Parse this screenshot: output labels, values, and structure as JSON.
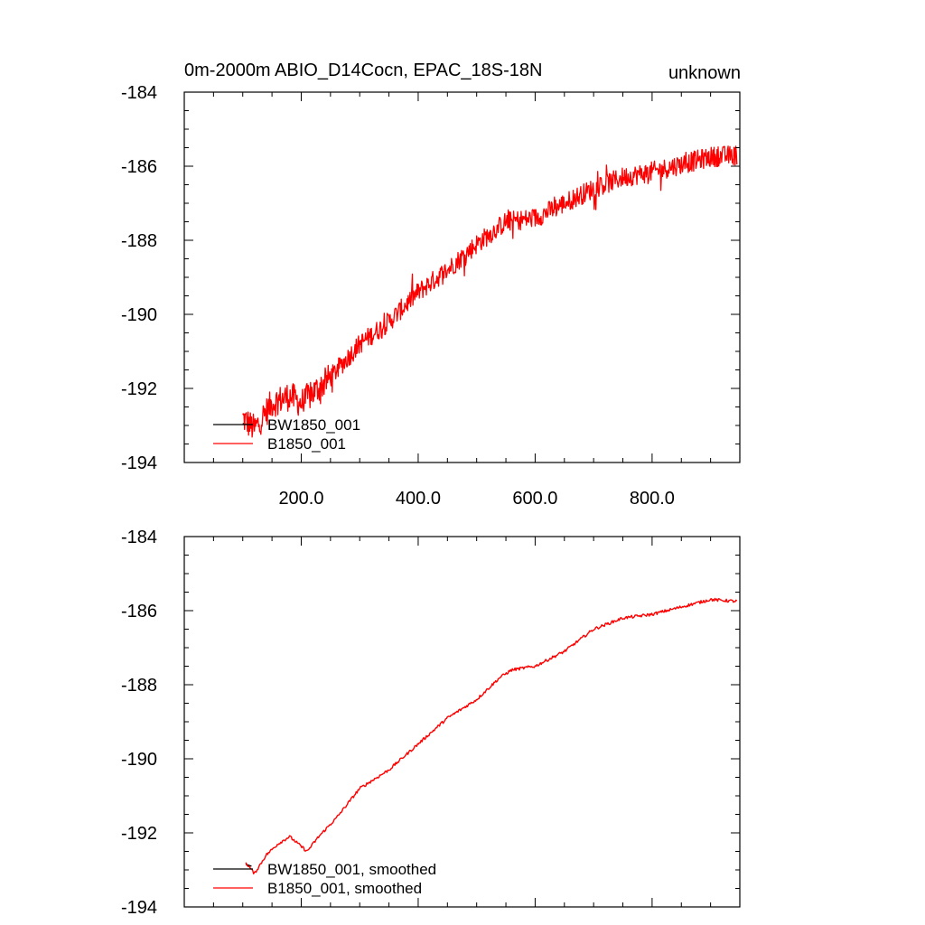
{
  "chart_data": [
    {
      "type": "line",
      "title_left": "0m-2000m ABIO_D14Cocn, EPAC_18S-18N",
      "title_right": "unknown",
      "xlim": [
        0,
        950
      ],
      "ylim": [
        -194,
        -184
      ],
      "x_ticks": [
        200,
        400,
        600,
        800
      ],
      "x_tick_labels": [
        "200.0",
        "400.0",
        "600.0",
        "800.0"
      ],
      "y_ticks": [
        -194,
        -192,
        -190,
        -188,
        -186,
        -184
      ],
      "y_tick_labels": [
        "-194",
        "-192",
        "-190",
        "-188",
        "-186",
        "-184"
      ],
      "legend": [
        {
          "label": "BW1850_001",
          "color": "#000000"
        },
        {
          "label": "B1850_001",
          "color": "#ff0000"
        }
      ],
      "series": [
        {
          "name": "BW1850_001",
          "color": "#000000",
          "x": [
            100,
            120
          ],
          "y": [
            -192.95,
            -193.0
          ]
        },
        {
          "name": "B1850_001",
          "color": "#ff0000",
          "noisy": true,
          "x": [
            100,
            120,
            150,
            180,
            200,
            250,
            300,
            350,
            400,
            450,
            500,
            550,
            600,
            650,
            700,
            750,
            800,
            850,
            900,
            945
          ],
          "y": [
            -192.8,
            -193.1,
            -192.4,
            -192.2,
            -192.4,
            -191.7,
            -190.8,
            -190.2,
            -189.4,
            -188.8,
            -188.1,
            -187.5,
            -187.4,
            -187.0,
            -186.6,
            -186.3,
            -186.15,
            -185.95,
            -185.75,
            -185.7
          ]
        }
      ]
    },
    {
      "type": "line",
      "xlim": [
        0,
        950
      ],
      "ylim": [
        -194,
        -184
      ],
      "y_ticks": [
        -194,
        -192,
        -190,
        -188,
        -186,
        -184
      ],
      "y_tick_labels": [
        "-194",
        "-192",
        "-190",
        "-188",
        "-186",
        "-184"
      ],
      "legend": [
        {
          "label": "BW1850_001, smoothed",
          "color": "#000000"
        },
        {
          "label": "B1850_001, smoothed",
          "color": "#ff0000"
        }
      ],
      "series": [
        {
          "name": "BW1850_001, smoothed",
          "color": "#000000",
          "x": [
            105,
            115
          ],
          "y": [
            -192.85,
            -192.9
          ]
        },
        {
          "name": "B1850_001, smoothed",
          "color": "#ff0000",
          "noisy": false,
          "x": [
            105,
            120,
            140,
            160,
            180,
            195,
            210,
            230,
            260,
            300,
            350,
            400,
            450,
            500,
            540,
            560,
            600,
            650,
            700,
            750,
            800,
            850,
            900,
            945
          ],
          "y": [
            -192.8,
            -193.1,
            -192.6,
            -192.3,
            -192.1,
            -192.3,
            -192.5,
            -192.1,
            -191.6,
            -190.8,
            -190.3,
            -189.6,
            -188.9,
            -188.4,
            -187.8,
            -187.6,
            -187.5,
            -187.1,
            -186.5,
            -186.2,
            -186.1,
            -185.9,
            -185.7,
            -185.75
          ]
        }
      ]
    }
  ]
}
